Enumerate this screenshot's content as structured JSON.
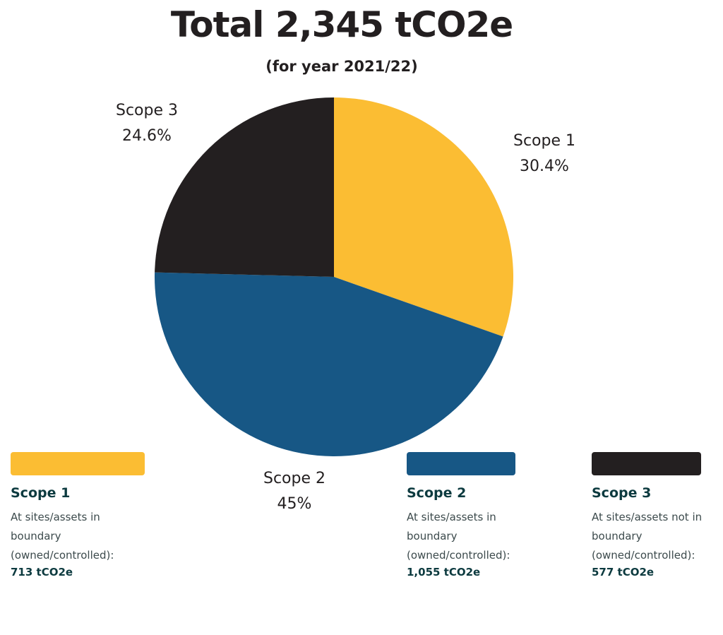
{
  "chart_data": {
    "type": "pie",
    "title": "Total 2,345 tCO2e",
    "subtitle": "(for year 2021/22)",
    "slices": [
      {
        "label": "Scope 1",
        "value": 30.4,
        "display": "30.4%",
        "color": "#fbbd33"
      },
      {
        "label": "Scope 2",
        "value": 45,
        "display": "45%",
        "color": "#175785"
      },
      {
        "label": "Scope 3",
        "value": 24.6,
        "display": "24.6%",
        "color": "#231f20"
      }
    ],
    "legend": [
      {
        "name": "Scope 1",
        "color": "#fbbd33",
        "desc_lines": [
          "At sites/assets in",
          "boundary",
          "(owned/controlled):"
        ],
        "value": "713 tCO2e"
      },
      {
        "name": "Scope 2",
        "color": "#175785",
        "desc_lines": [
          "At sites/assets in",
          "boundary",
          "(owned/controlled):"
        ],
        "value": "1,055 tCO2e"
      },
      {
        "name": "Scope 3",
        "color": "#231f20",
        "desc_lines": [
          "At sites/assets not in",
          "boundary",
          "(owned/controlled):"
        ],
        "value": "577 tCO2e"
      }
    ]
  }
}
